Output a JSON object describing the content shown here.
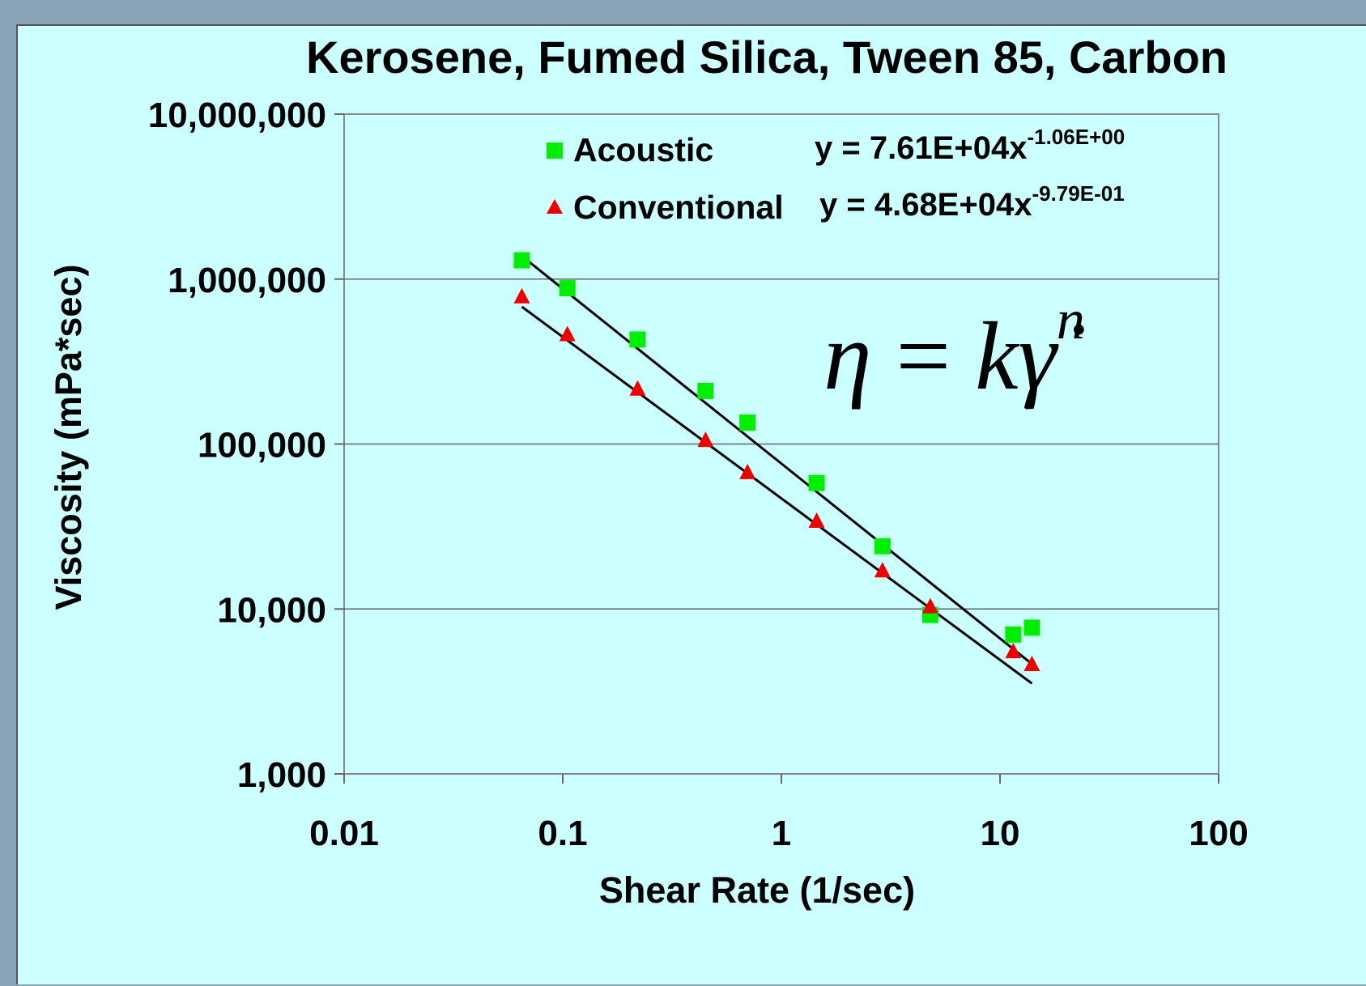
{
  "chart_data": {
    "type": "scatter",
    "title": "Kerosene, Fumed Silica, Tween 85, Carbon",
    "xlabel": "Shear Rate (1/sec)",
    "ylabel": "Viscosity (mPa*sec)",
    "x_scale": "log",
    "y_scale": "log",
    "xlim": [
      0.01,
      100
    ],
    "ylim": [
      1000,
      10000000
    ],
    "x_ticks": [
      0.01,
      0.1,
      1,
      10,
      100
    ],
    "x_tick_labels": [
      "0.01",
      "0.1",
      "1",
      "10",
      "100"
    ],
    "y_ticks": [
      1000,
      10000,
      100000,
      1000000,
      10000000
    ],
    "y_tick_labels": [
      "1,000",
      "10,000",
      "100,000",
      "1,000,000",
      "10,000,000"
    ],
    "grid": "horizontal",
    "legend_position": "top-right",
    "series": [
      {
        "name": "Acoustic",
        "marker": "square",
        "color": "#00ee00",
        "points": [
          {
            "x": 0.065,
            "y": 1300000
          },
          {
            "x": 0.105,
            "y": 880000
          },
          {
            "x": 0.22,
            "y": 430000
          },
          {
            "x": 0.45,
            "y": 210000
          },
          {
            "x": 0.7,
            "y": 135000
          },
          {
            "x": 1.45,
            "y": 58000
          },
          {
            "x": 2.9,
            "y": 24000
          },
          {
            "x": 4.8,
            "y": 9200
          },
          {
            "x": 11.5,
            "y": 7000
          },
          {
            "x": 14,
            "y": 7700
          }
        ],
        "fit": {
          "k": 76100,
          "n": -1.06,
          "equation_base": "y = 7.61E+04x",
          "equation_exp": "-1.06E+00"
        }
      },
      {
        "name": "Conventional",
        "marker": "triangle",
        "color": "#ee0000",
        "points": [
          {
            "x": 0.065,
            "y": 780000
          },
          {
            "x": 0.105,
            "y": 460000
          },
          {
            "x": 0.22,
            "y": 215000
          },
          {
            "x": 0.45,
            "y": 105000
          },
          {
            "x": 0.7,
            "y": 67000
          },
          {
            "x": 1.45,
            "y": 34000
          },
          {
            "x": 2.9,
            "y": 17000
          },
          {
            "x": 4.8,
            "y": 10300
          },
          {
            "x": 11.5,
            "y": 5500
          },
          {
            "x": 14,
            "y": 4600
          }
        ],
        "fit": {
          "k": 46800,
          "n": -0.979,
          "equation_base": "y = 4.68E+04x",
          "equation_exp": "-9.79E-01"
        }
      }
    ],
    "fit_line_color": "#000000",
    "annotation": {
      "lhs": "η",
      "equals": "=",
      "rhs": "kγ̇",
      "exponent": "n"
    }
  }
}
